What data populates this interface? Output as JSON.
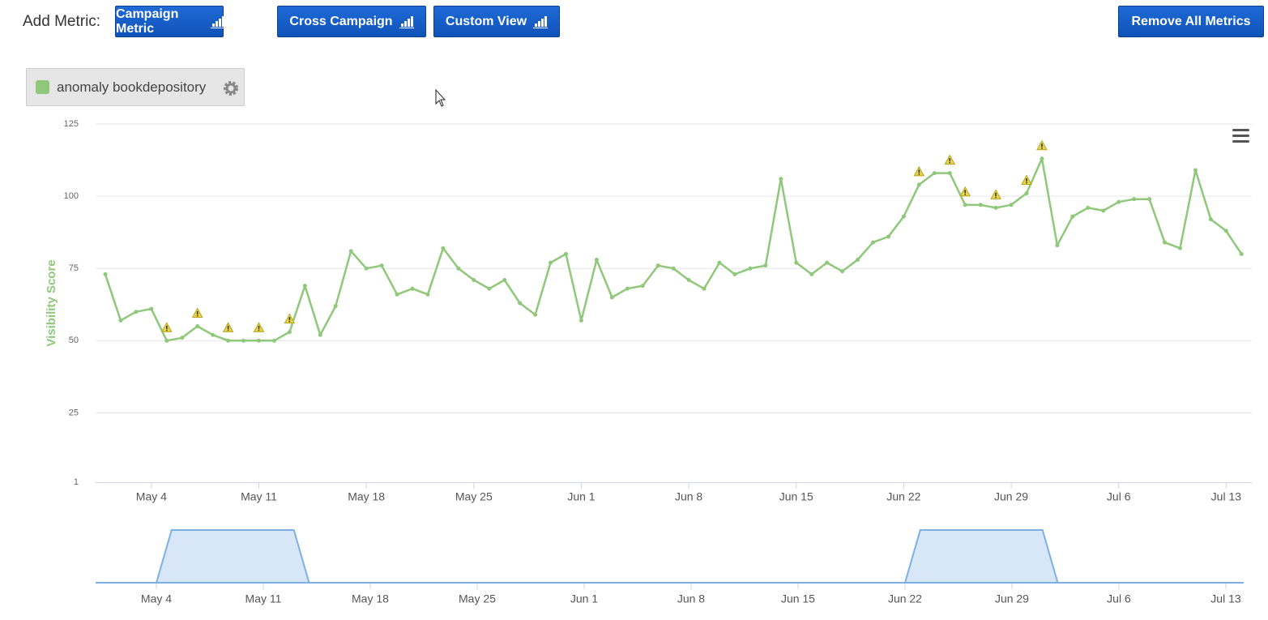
{
  "toolbar": {
    "label": "Add Metric:",
    "buttons": [
      "Campaign Metric",
      "Cross Campaign",
      "Custom View"
    ],
    "remove_button": "Remove All Metrics"
  },
  "chart_data": {
    "type": "line",
    "y_label": "Visibility Score",
    "categories": [
      null,
      null,
      null,
      "May 4",
      null,
      null,
      null,
      null,
      null,
      null,
      "May 11",
      null,
      null,
      null,
      null,
      null,
      null,
      "May 18",
      null,
      null,
      null,
      null,
      null,
      null,
      "May 25",
      null,
      null,
      null,
      null,
      null,
      null,
      "Jun 1",
      null,
      null,
      null,
      null,
      null,
      null,
      "Jun 8",
      null,
      null,
      null,
      null,
      null,
      null,
      "Jun 15",
      null,
      null,
      null,
      null,
      null,
      null,
      "Jun 22",
      null,
      null,
      null,
      null,
      null,
      null,
      "Jun 29",
      null,
      null,
      null,
      null,
      null,
      null,
      "Jul 6",
      null,
      null,
      null,
      null,
      null,
      null,
      "Jul 13",
      null
    ],
    "series": [
      {
        "name": "anomaly bookdepository",
        "color": "#8fc87a",
        "values": [
          73,
          57,
          60,
          61,
          50,
          51,
          55,
          52,
          50,
          50,
          50,
          50,
          53,
          69,
          52,
          62,
          81,
          75,
          76,
          66,
          68,
          66,
          82,
          75,
          71,
          68,
          71,
          63,
          59,
          77,
          80,
          57,
          78,
          65,
          68,
          69,
          76,
          75,
          71,
          68,
          77,
          73,
          75,
          76,
          106,
          77,
          73,
          77,
          74,
          78,
          84,
          86,
          93,
          104,
          108,
          108,
          97,
          97,
          96,
          97,
          101,
          113,
          83,
          93,
          96,
          95,
          98,
          99,
          99,
          84,
          82,
          109,
          92,
          88,
          80
        ]
      }
    ],
    "anomaly_flags": [
      false,
      false,
      false,
      false,
      true,
      false,
      true,
      false,
      true,
      false,
      true,
      false,
      true,
      false,
      false,
      false,
      false,
      false,
      false,
      false,
      false,
      false,
      false,
      false,
      false,
      false,
      false,
      false,
      false,
      false,
      false,
      false,
      false,
      false,
      false,
      false,
      false,
      false,
      false,
      false,
      false,
      false,
      false,
      false,
      false,
      false,
      false,
      false,
      false,
      false,
      false,
      false,
      false,
      true,
      false,
      true,
      true,
      false,
      true,
      false,
      true,
      true,
      false,
      false,
      false,
      false,
      false,
      false,
      false,
      false,
      false,
      false,
      false,
      false,
      false
    ],
    "navigator": {
      "color": "#7cb0e4",
      "values": [
        0,
        0,
        0,
        0,
        1,
        1,
        1,
        1,
        1,
        1,
        1,
        1,
        1,
        0,
        0,
        0,
        0,
        0,
        0,
        0,
        0,
        0,
        0,
        0,
        0,
        0,
        0,
        0,
        0,
        0,
        0,
        0,
        0,
        0,
        0,
        0,
        0,
        0,
        0,
        0,
        0,
        0,
        0,
        0,
        0,
        0,
        0,
        0,
        0,
        0,
        0,
        0,
        0,
        1,
        1,
        1,
        1,
        1,
        1,
        1,
        1,
        1,
        0,
        0,
        0,
        0,
        0,
        0,
        0,
        0,
        0,
        0,
        0,
        0,
        0
      ]
    },
    "ylim": [
      1,
      125
    ],
    "yticks": [
      1,
      25,
      50,
      75,
      100,
      125
    ],
    "grid": true
  }
}
